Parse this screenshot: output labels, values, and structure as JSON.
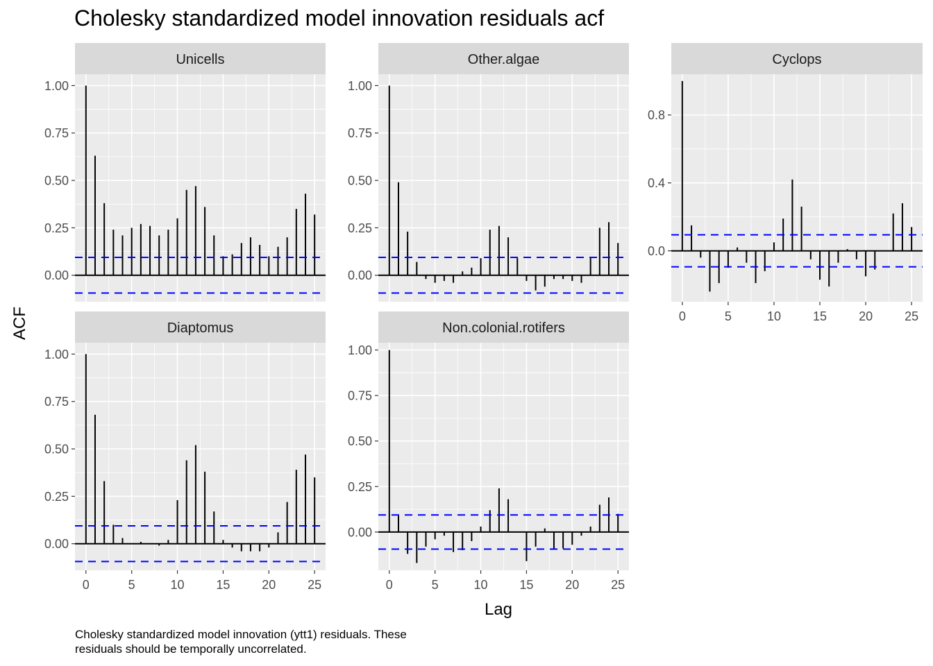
{
  "title": "Cholesky standardized model innovation residuals acf",
  "caption": {
    "line1": "Cholesky standardized model innovation (ytt1) residuals. These",
    "line2": "residuals should be temporally uncorrelated."
  },
  "colors": {
    "panel_bg": "#ebebeb",
    "strip_bg": "#d9d9d9",
    "grid": "#ffffff",
    "bar": "#000000",
    "ci_line": "#0000ff",
    "axis_text": "#4d4d4d"
  },
  "chart_data": {
    "type": "bar",
    "facet": "wrap",
    "xlabel": "Lag",
    "ylabel": "ACF",
    "x": [
      0,
      1,
      2,
      3,
      4,
      5,
      6,
      7,
      8,
      9,
      10,
      11,
      12,
      13,
      14,
      15,
      16,
      17,
      18,
      19,
      20,
      21,
      22,
      23,
      24,
      25
    ],
    "x_ticks": [
      0,
      5,
      10,
      15,
      20,
      25
    ],
    "x_tick_labels": [
      "0",
      "5",
      "10",
      "15",
      "20",
      "25"
    ],
    "xlim": [
      -1.2,
      26.2
    ],
    "grid": true,
    "ci_bound": 0.094,
    "panels": [
      {
        "name": "Unicells",
        "ylim": [
          -0.14,
          1.06
        ],
        "y_ticks": [
          0,
          0.25,
          0.5,
          0.75,
          1
        ],
        "y_tick_labels": [
          "0.00",
          "0.25",
          "0.50",
          "0.75",
          "1.00"
        ],
        "values": [
          1.0,
          0.63,
          0.38,
          0.24,
          0.21,
          0.25,
          0.27,
          0.26,
          0.21,
          0.24,
          0.3,
          0.45,
          0.47,
          0.36,
          0.21,
          0.1,
          0.11,
          0.17,
          0.2,
          0.16,
          0.1,
          0.15,
          0.2,
          0.35,
          0.43,
          0.32
        ]
      },
      {
        "name": "Other.algae",
        "ylim": [
          -0.14,
          1.06
        ],
        "y_ticks": [
          0,
          0.25,
          0.5,
          0.75,
          1
        ],
        "y_tick_labels": [
          "0.00",
          "0.25",
          "0.50",
          "0.75",
          "1.00"
        ],
        "values": [
          1.0,
          0.49,
          0.23,
          0.07,
          -0.02,
          -0.04,
          -0.03,
          -0.04,
          0.02,
          0.04,
          0.09,
          0.24,
          0.26,
          0.2,
          0.09,
          -0.03,
          -0.08,
          -0.06,
          -0.02,
          -0.02,
          -0.03,
          -0.04,
          0.09,
          0.25,
          0.28,
          0.17
        ]
      },
      {
        "name": "Cyclops",
        "ylim": [
          -0.3,
          1.04
        ],
        "y_ticks": [
          0,
          0.4,
          0.8
        ],
        "y_tick_labels": [
          "0.0",
          "0.4",
          "0.8"
        ],
        "values": [
          1.0,
          0.15,
          -0.04,
          -0.24,
          -0.19,
          -0.1,
          0.02,
          -0.07,
          -0.19,
          -0.12,
          0.05,
          0.19,
          0.42,
          0.26,
          -0.05,
          -0.17,
          -0.21,
          -0.07,
          0.01,
          -0.05,
          -0.15,
          -0.11,
          0.0,
          0.22,
          0.28,
          0.14
        ]
      },
      {
        "name": "Diaptomus",
        "ylim": [
          -0.14,
          1.06
        ],
        "y_ticks": [
          0,
          0.25,
          0.5,
          0.75,
          1
        ],
        "y_tick_labels": [
          "0.00",
          "0.25",
          "0.50",
          "0.75",
          "1.00"
        ],
        "values": [
          1.0,
          0.68,
          0.33,
          0.1,
          0.03,
          0.0,
          0.01,
          0.0,
          -0.01,
          0.02,
          0.23,
          0.44,
          0.52,
          0.38,
          0.17,
          0.02,
          -0.02,
          -0.04,
          -0.04,
          -0.04,
          -0.02,
          0.06,
          0.22,
          0.39,
          0.47,
          0.35
        ]
      },
      {
        "name": "Non.colonial.rotifers",
        "ylim": [
          -0.21,
          1.04
        ],
        "y_ticks": [
          0,
          0.25,
          0.5,
          0.75,
          1
        ],
        "y_tick_labels": [
          "0.00",
          "0.25",
          "0.50",
          "0.75",
          "1.00"
        ],
        "values": [
          1.0,
          0.09,
          -0.12,
          -0.17,
          -0.08,
          -0.04,
          -0.02,
          -0.11,
          -0.1,
          -0.05,
          0.03,
          0.12,
          0.24,
          0.18,
          0.0,
          -0.16,
          -0.08,
          0.02,
          -0.09,
          -0.09,
          -0.07,
          -0.02,
          0.03,
          0.15,
          0.19,
          0.1
        ]
      }
    ]
  }
}
